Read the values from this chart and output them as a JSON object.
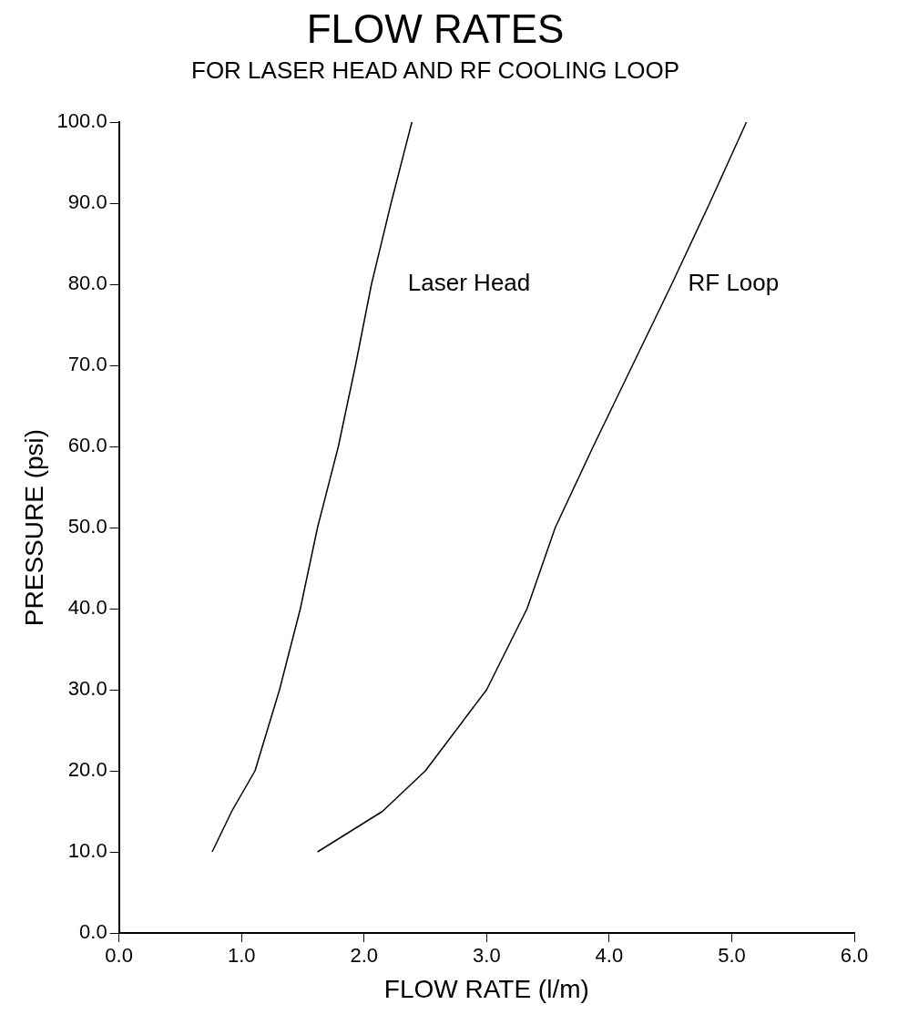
{
  "chart_data": {
    "type": "line",
    "title": "FLOW RATES",
    "subtitle": "FOR LASER HEAD AND RF COOLING LOOP",
    "xlabel": "FLOW RATE (l/m)",
    "ylabel": "PRESSURE (psi)",
    "xlim": [
      0,
      6
    ],
    "xticks": [
      {
        "value": 0,
        "label": "0.0"
      },
      {
        "value": 1,
        "label": "1.0"
      },
      {
        "value": 2,
        "label": "2.0"
      },
      {
        "value": 3,
        "label": "3.0"
      },
      {
        "value": 4,
        "label": "4.0"
      },
      {
        "value": 5,
        "label": "5.0"
      },
      {
        "value": 6,
        "label": "6.0"
      }
    ],
    "ylim": [
      0,
      100
    ],
    "yticks": [
      {
        "value": 0,
        "label": "0.0"
      },
      {
        "value": 10,
        "label": "10.0"
      },
      {
        "value": 20,
        "label": "20.0"
      },
      {
        "value": 30,
        "label": "30.0"
      },
      {
        "value": 40,
        "label": "40.0"
      },
      {
        "value": 50,
        "label": "50.0"
      },
      {
        "value": 60,
        "label": "60.0"
      },
      {
        "value": 70,
        "label": "70.0"
      },
      {
        "value": 80,
        "label": "80.0"
      },
      {
        "value": 90,
        "label": "90.0"
      },
      {
        "value": 100,
        "label": "100.0"
      }
    ],
    "grid": false,
    "legend": false,
    "marker": "none",
    "line_style": "solid",
    "series": [
      {
        "name": "Laser Head",
        "color": "#000000",
        "x": [
          0.76,
          0.92,
          1.11,
          1.31,
          1.48,
          1.62,
          1.79,
          1.93,
          2.06,
          2.22,
          2.39
        ],
        "values": [
          10,
          15,
          20,
          30,
          40,
          50,
          60,
          70,
          80,
          90,
          100
        ]
      },
      {
        "name": "RF Loop",
        "color": "#000000",
        "x": [
          1.62,
          2.15,
          2.5,
          3.0,
          3.33,
          3.56,
          3.87,
          4.19,
          4.51,
          4.82,
          5.12
        ],
        "values": [
          10,
          15,
          20,
          30,
          40,
          50,
          60,
          70,
          80,
          90,
          100
        ]
      }
    ]
  }
}
